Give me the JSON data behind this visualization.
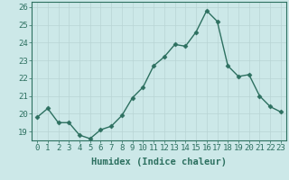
{
  "x": [
    0,
    1,
    2,
    3,
    4,
    5,
    6,
    7,
    8,
    9,
    10,
    11,
    12,
    13,
    14,
    15,
    16,
    17,
    18,
    19,
    20,
    21,
    22,
    23
  ],
  "y": [
    19.8,
    20.3,
    19.5,
    19.5,
    18.8,
    18.6,
    19.1,
    19.3,
    19.9,
    20.9,
    21.5,
    22.7,
    23.2,
    23.9,
    23.8,
    24.6,
    25.8,
    25.2,
    22.7,
    22.1,
    22.2,
    21.0,
    20.4,
    20.1
  ],
  "line_color": "#2d7060",
  "marker": "D",
  "marker_size": 2.5,
  "line_width": 1.0,
  "bg_color": "#cce8e8",
  "grid_color": "#b8d4d4",
  "xlabel": "Humidex (Indice chaleur)",
  "xlabel_fontsize": 7.5,
  "tick_fontsize": 6.5,
  "ylim": [
    18.5,
    26.3
  ],
  "xlim": [
    -0.5,
    23.5
  ],
  "yticks": [
    19,
    20,
    21,
    22,
    23,
    24,
    25,
    26
  ],
  "xticks": [
    0,
    1,
    2,
    3,
    4,
    5,
    6,
    7,
    8,
    9,
    10,
    11,
    12,
    13,
    14,
    15,
    16,
    17,
    18,
    19,
    20,
    21,
    22,
    23
  ]
}
